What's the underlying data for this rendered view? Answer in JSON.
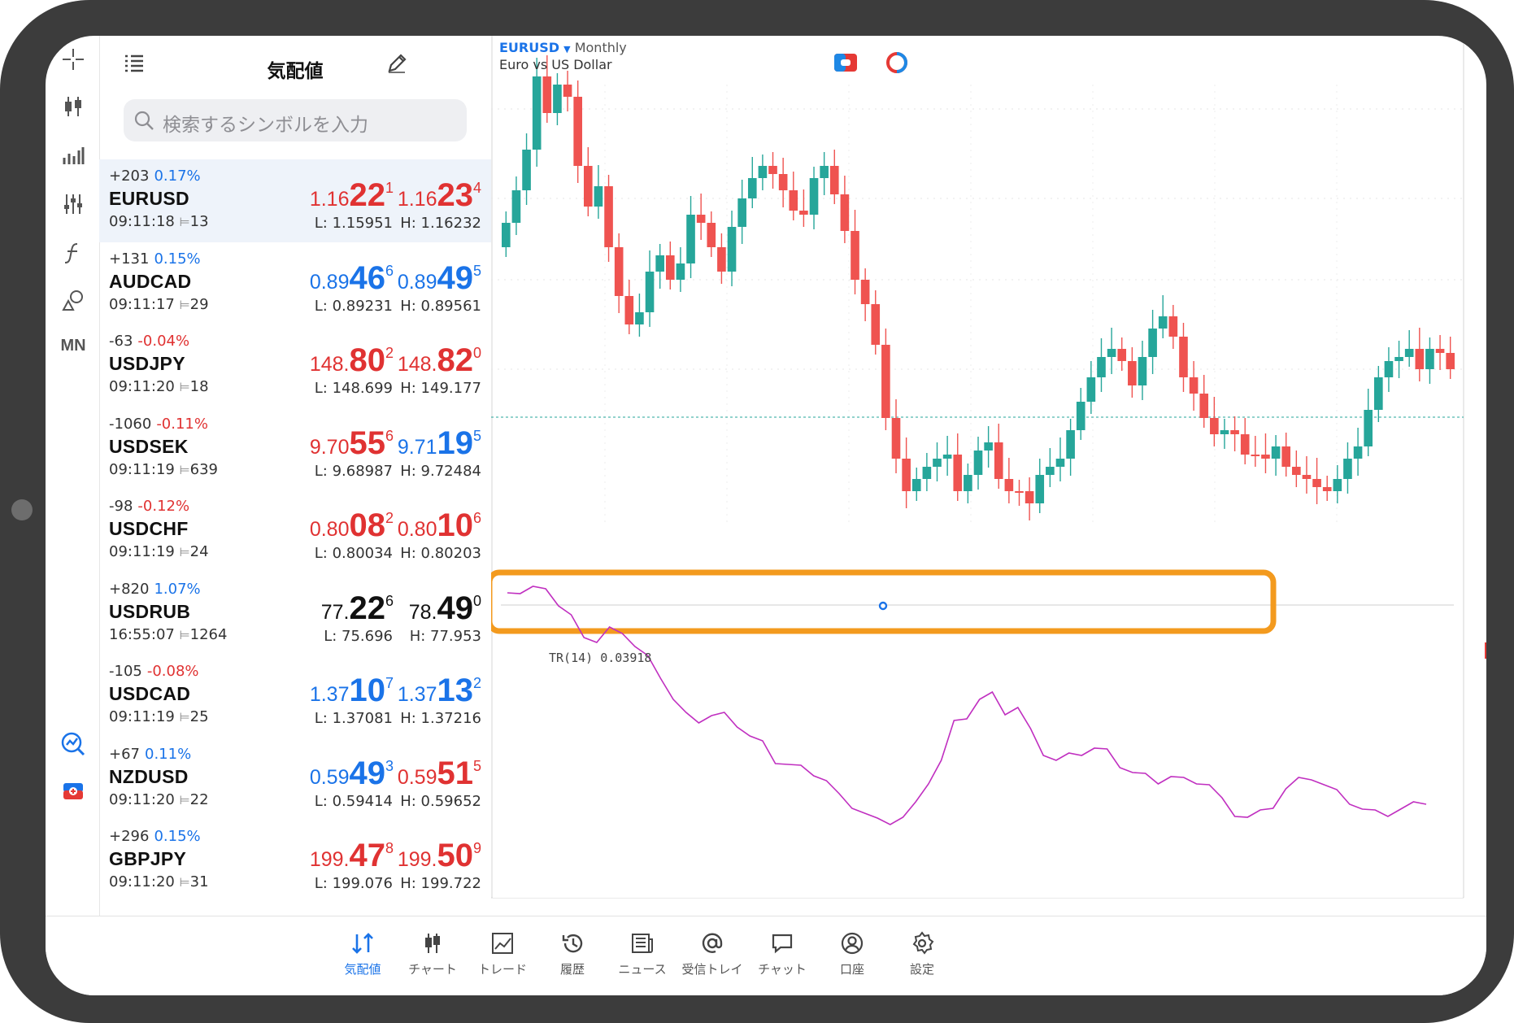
{
  "watchlist": {
    "title": "気配値",
    "search_placeholder": "検索するシンボルを入力",
    "rows": [
      {
        "change": "+203",
        "pct": "0.17%",
        "pct_dir": "up",
        "symbol": "EURUSD",
        "time": "09:11:18",
        "spread": "13",
        "bid": {
          "small": "1.16",
          "big": "22",
          "pip": "1",
          "color": "#e03232"
        },
        "ask": {
          "small": "1.16",
          "big": "23",
          "pip": "4",
          "color": "#e03232"
        },
        "low": "L: 1.15951",
        "high": "H: 1.16232"
      },
      {
        "change": "+131",
        "pct": "0.15%",
        "pct_dir": "up",
        "symbol": "AUDCAD",
        "time": "09:11:17",
        "spread": "29",
        "bid": {
          "small": "0.89",
          "big": "46",
          "pip": "6",
          "color": "#1a73e8"
        },
        "ask": {
          "small": "0.89",
          "big": "49",
          "pip": "5",
          "color": "#1a73e8"
        },
        "low": "L: 0.89231",
        "high": "H: 0.89561"
      },
      {
        "change": "-63",
        "pct": "-0.04%",
        "pct_dir": "down",
        "symbol": "USDJPY",
        "time": "09:11:20",
        "spread": "18",
        "bid": {
          "small": "148.",
          "big": "80",
          "pip": "2",
          "color": "#e03232"
        },
        "ask": {
          "small": "148.",
          "big": "82",
          "pip": "0",
          "color": "#e03232"
        },
        "low": "L: 148.699",
        "high": "H: 149.177"
      },
      {
        "change": "-1060",
        "pct": "-0.11%",
        "pct_dir": "down",
        "symbol": "USDSEK",
        "time": "09:11:19",
        "spread": "639",
        "bid": {
          "small": "9.70",
          "big": "55",
          "pip": "6",
          "color": "#e03232"
        },
        "ask": {
          "small": "9.71",
          "big": "19",
          "pip": "5",
          "color": "#1a73e8"
        },
        "low": "L: 9.68987",
        "high": "H: 9.72484"
      },
      {
        "change": "-98",
        "pct": "-0.12%",
        "pct_dir": "down",
        "symbol": "USDCHF",
        "time": "09:11:19",
        "spread": "24",
        "bid": {
          "small": "0.80",
          "big": "08",
          "pip": "2",
          "color": "#e03232"
        },
        "ask": {
          "small": "0.80",
          "big": "10",
          "pip": "6",
          "color": "#e03232"
        },
        "low": "L: 0.80034",
        "high": "H: 0.80203"
      },
      {
        "change": "+820",
        "pct": "1.07%",
        "pct_dir": "up",
        "symbol": "USDRUB",
        "time": "16:55:07",
        "spread": "1264",
        "bid": {
          "small": "77.",
          "big": "22",
          "pip": "6",
          "color": "#111111"
        },
        "ask": {
          "small": "78.",
          "big": "49",
          "pip": "0",
          "color": "#111111"
        },
        "low": "L: 75.696",
        "high": "H: 77.953"
      },
      {
        "change": "-105",
        "pct": "-0.08%",
        "pct_dir": "down",
        "symbol": "USDCAD",
        "time": "09:11:19",
        "spread": "25",
        "bid": {
          "small": "1.37",
          "big": "10",
          "pip": "7",
          "color": "#1a73e8"
        },
        "ask": {
          "small": "1.37",
          "big": "13",
          "pip": "2",
          "color": "#1a73e8"
        },
        "low": "L: 1.37081",
        "high": "H: 1.37216"
      },
      {
        "change": "+67",
        "pct": "0.11%",
        "pct_dir": "up",
        "symbol": "NZDUSD",
        "time": "09:11:20",
        "spread": "22",
        "bid": {
          "small": "0.59",
          "big": "49",
          "pip": "3",
          "color": "#1a73e8"
        },
        "ask": {
          "small": "0.59",
          "big": "51",
          "pip": "5",
          "color": "#e03232"
        },
        "low": "L: 0.59414",
        "high": "H: 0.59652"
      },
      {
        "change": "+296",
        "pct": "0.15%",
        "pct_dir": "up",
        "symbol": "GBPJPY",
        "time": "09:11:20",
        "spread": "31",
        "bid": {
          "small": "199.",
          "big": "47",
          "pip": "8",
          "color": "#e03232"
        },
        "ask": {
          "small": "199.",
          "big": "50",
          "pip": "9",
          "color": "#e03232"
        },
        "low": "L: 199.076",
        "high": "H: 199.722"
      }
    ]
  },
  "left_tools": [
    {
      "name": "crosshair-icon"
    },
    {
      "name": "candlestick-icon"
    },
    {
      "name": "bar-chart-icon"
    },
    {
      "name": "indicators-icon"
    },
    {
      "name": "function-icon"
    },
    {
      "name": "objects-icon"
    },
    {
      "name": "timeframe-label",
      "text": "MN"
    },
    {
      "name": "signals-icon"
    },
    {
      "name": "one-click-trading-icon"
    }
  ],
  "chart": {
    "symbol": "EURUSD",
    "timeframe": "Monthly",
    "description": "Euro vs US Dollar",
    "indicator_label": "TR(14) 0.03918",
    "colors": {
      "bull": "#26a69a",
      "bear": "#ef5350",
      "indicator": "#c02fc0",
      "highlight": "#f39a1e",
      "accent": "#1a73e8"
    }
  },
  "tabs": [
    {
      "label": "気配値",
      "icon": "quotes-icon",
      "active": true
    },
    {
      "label": "チャート",
      "icon": "chart-icon",
      "active": false
    },
    {
      "label": "トレード",
      "icon": "trade-icon",
      "active": false
    },
    {
      "label": "履歴",
      "icon": "history-icon",
      "active": false
    },
    {
      "label": "ニュース",
      "icon": "news-icon",
      "active": false
    },
    {
      "label": "受信トレイ",
      "icon": "mail-icon",
      "active": false
    },
    {
      "label": "チャット",
      "icon": "chat-icon",
      "active": false
    },
    {
      "label": "口座",
      "icon": "account-icon",
      "active": false
    },
    {
      "label": "設定",
      "icon": "settings-icon",
      "active": false
    }
  ]
}
